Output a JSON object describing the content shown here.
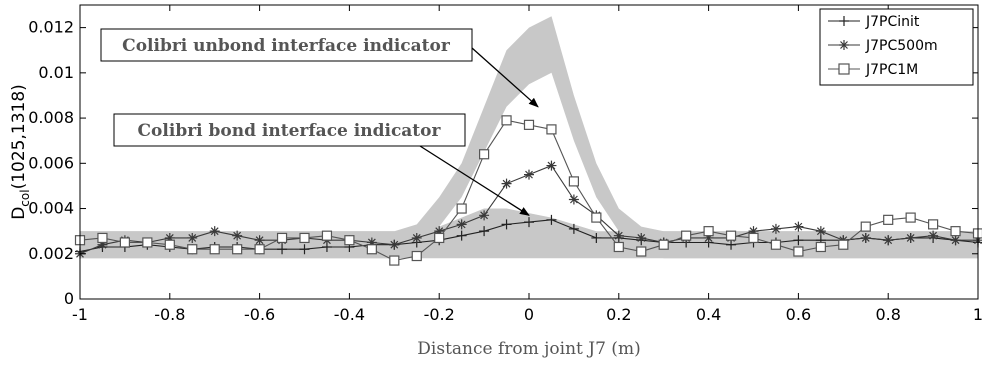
{
  "chart_data": {
    "type": "line",
    "xlabel": "Distance from joint J7 (m)",
    "ylabel_main": "D",
    "ylabel_sub": "col",
    "ylabel_suffix": "(1025,1318)",
    "xlim": [
      -1,
      1
    ],
    "ylim": [
      0,
      0.013
    ],
    "xticks": [
      -1,
      -0.8,
      -0.6,
      -0.4,
      -0.2,
      0,
      0.2,
      0.4,
      0.6,
      0.8,
      1
    ],
    "xtick_labels": [
      "-1",
      "-0.8",
      "-0.6",
      "-0.4",
      "-0.2",
      "0",
      "0.2",
      "0.4",
      "0.6",
      "0.8",
      "1"
    ],
    "yticks": [
      0,
      0.002,
      0.004,
      0.006,
      0.008,
      0.01,
      0.012
    ],
    "ytick_labels": [
      "0",
      "0.002",
      "0.004",
      "0.006",
      "0.008",
      "0.01",
      "0.012"
    ],
    "grid": false,
    "legend_position": "top-right",
    "x": [
      -1,
      -0.95,
      -0.9,
      -0.85,
      -0.8,
      -0.75,
      -0.7,
      -0.65,
      -0.6,
      -0.55,
      -0.5,
      -0.45,
      -0.4,
      -0.35,
      -0.3,
      -0.25,
      -0.2,
      -0.15,
      -0.1,
      -0.05,
      0,
      0.05,
      0.1,
      0.15,
      0.2,
      0.25,
      0.3,
      0.35,
      0.4,
      0.45,
      0.5,
      0.55,
      0.6,
      0.65,
      0.7,
      0.75,
      0.8,
      0.85,
      0.9,
      0.95,
      1
    ],
    "series": [
      {
        "name": "J7PCinit",
        "marker": "plus",
        "values": [
          0.0021,
          0.0023,
          0.0023,
          0.0024,
          0.0023,
          0.0022,
          0.0023,
          0.0023,
          0.0022,
          0.0022,
          0.0022,
          0.0023,
          0.0023,
          0.0024,
          0.0024,
          0.0025,
          0.0026,
          0.0028,
          0.003,
          0.0033,
          0.0034,
          0.0035,
          0.0031,
          0.0027,
          0.0027,
          0.0026,
          0.0025,
          0.0025,
          0.0025,
          0.0024,
          0.0025,
          0.0025,
          0.0026,
          0.0026,
          0.0026,
          0.0027,
          0.0026,
          0.0027,
          0.0027,
          0.0026,
          0.0025
        ]
      },
      {
        "name": "J7PC500m",
        "marker": "asterisk",
        "values": [
          0.002,
          0.0024,
          0.0026,
          0.0025,
          0.0027,
          0.0027,
          0.003,
          0.0028,
          0.0026,
          0.0026,
          0.0027,
          0.0026,
          0.0026,
          0.0025,
          0.0024,
          0.0027,
          0.003,
          0.0033,
          0.0037,
          0.0051,
          0.0055,
          0.0059,
          0.0044,
          0.0037,
          0.0028,
          0.0027,
          0.0025,
          0.0027,
          0.0027,
          0.0027,
          0.003,
          0.0031,
          0.0032,
          0.003,
          0.0026,
          0.0027,
          0.0026,
          0.0027,
          0.0028,
          0.0026,
          0.0026
        ]
      },
      {
        "name": "J7PC1M",
        "marker": "square",
        "values": [
          0.0026,
          0.0027,
          0.0025,
          0.0025,
          0.0024,
          0.0022,
          0.0022,
          0.0022,
          0.0022,
          0.0027,
          0.0027,
          0.0028,
          0.0026,
          0.0022,
          0.0017,
          0.0019,
          0.0027,
          0.004,
          0.0064,
          0.0079,
          0.0077,
          0.0075,
          0.0052,
          0.0036,
          0.0023,
          0.0021,
          0.0024,
          0.0028,
          0.003,
          0.0028,
          0.0027,
          0.0024,
          0.0021,
          0.0023,
          0.0024,
          0.0032,
          0.0035,
          0.0036,
          0.0033,
          0.003,
          0.0029
        ]
      }
    ],
    "bands": [
      {
        "upper": [
          0.003,
          0.003,
          0.003,
          0.003,
          0.003,
          0.003,
          0.003,
          0.003,
          0.003,
          0.003,
          0.003,
          0.003,
          0.003,
          0.003,
          0.003,
          0.003,
          0.0032,
          0.0036,
          0.004,
          0.004,
          0.0038,
          0.0036,
          0.0033,
          0.003,
          0.003,
          0.003,
          0.003,
          0.003,
          0.003,
          0.003,
          0.003,
          0.003,
          0.003,
          0.003,
          0.003,
          0.003,
          0.003,
          0.003,
          0.003,
          0.003,
          0.003
        ],
        "lower": [
          0.0018,
          0.0018,
          0.0018,
          0.0018,
          0.0018,
          0.0018,
          0.0018,
          0.0018,
          0.0018,
          0.0018,
          0.0018,
          0.0018,
          0.0018,
          0.0018,
          0.0018,
          0.0018,
          0.0018,
          0.0018,
          0.0018,
          0.0018,
          0.0018,
          0.0018,
          0.0018,
          0.0018,
          0.0018,
          0.0018,
          0.0018,
          0.0018,
          0.0018,
          0.0018,
          0.0018,
          0.0018,
          0.0018,
          0.0018,
          0.0018,
          0.0018,
          0.0018,
          0.0018,
          0.0018,
          0.0018,
          0.0018
        ]
      },
      {
        "upper": [
          0.003,
          0.003,
          0.003,
          0.003,
          0.003,
          0.003,
          0.003,
          0.003,
          0.003,
          0.003,
          0.003,
          0.003,
          0.003,
          0.003,
          0.003,
          0.0033,
          0.0045,
          0.006,
          0.0085,
          0.011,
          0.012,
          0.0125,
          0.009,
          0.006,
          0.004,
          0.0032,
          0.003,
          0.003,
          0.003,
          0.003,
          0.003,
          0.003,
          0.003,
          0.003,
          0.003,
          0.003,
          0.003,
          0.003,
          0.003,
          0.003,
          0.003
        ],
        "lower": [
          0.0018,
          0.0018,
          0.0018,
          0.0018,
          0.0018,
          0.0018,
          0.0018,
          0.0018,
          0.0018,
          0.0018,
          0.0018,
          0.0018,
          0.0018,
          0.0018,
          0.0018,
          0.0022,
          0.0032,
          0.0045,
          0.0065,
          0.0085,
          0.0095,
          0.01,
          0.007,
          0.0045,
          0.003,
          0.0022,
          0.0018,
          0.0018,
          0.0018,
          0.0018,
          0.0018,
          0.0018,
          0.0018,
          0.0018,
          0.0018,
          0.0018,
          0.0018,
          0.0018,
          0.0018,
          0.0018,
          0.0018
        ]
      }
    ],
    "annotations": [
      {
        "text": "Colibri unbond interface indicator",
        "arrow_to": [
          0.02,
          0.0085
        ]
      },
      {
        "text": "Colibri bond interface indicator",
        "arrow_to": [
          0.0,
          0.0037
        ]
      }
    ],
    "colors": {
      "band": "#c8c8c8",
      "J7PCinit": "#222222",
      "J7PC500m": "#3a3a3a",
      "J7PC1M": "#555555",
      "axis": "#000000",
      "annotation_text": "#555555"
    }
  }
}
